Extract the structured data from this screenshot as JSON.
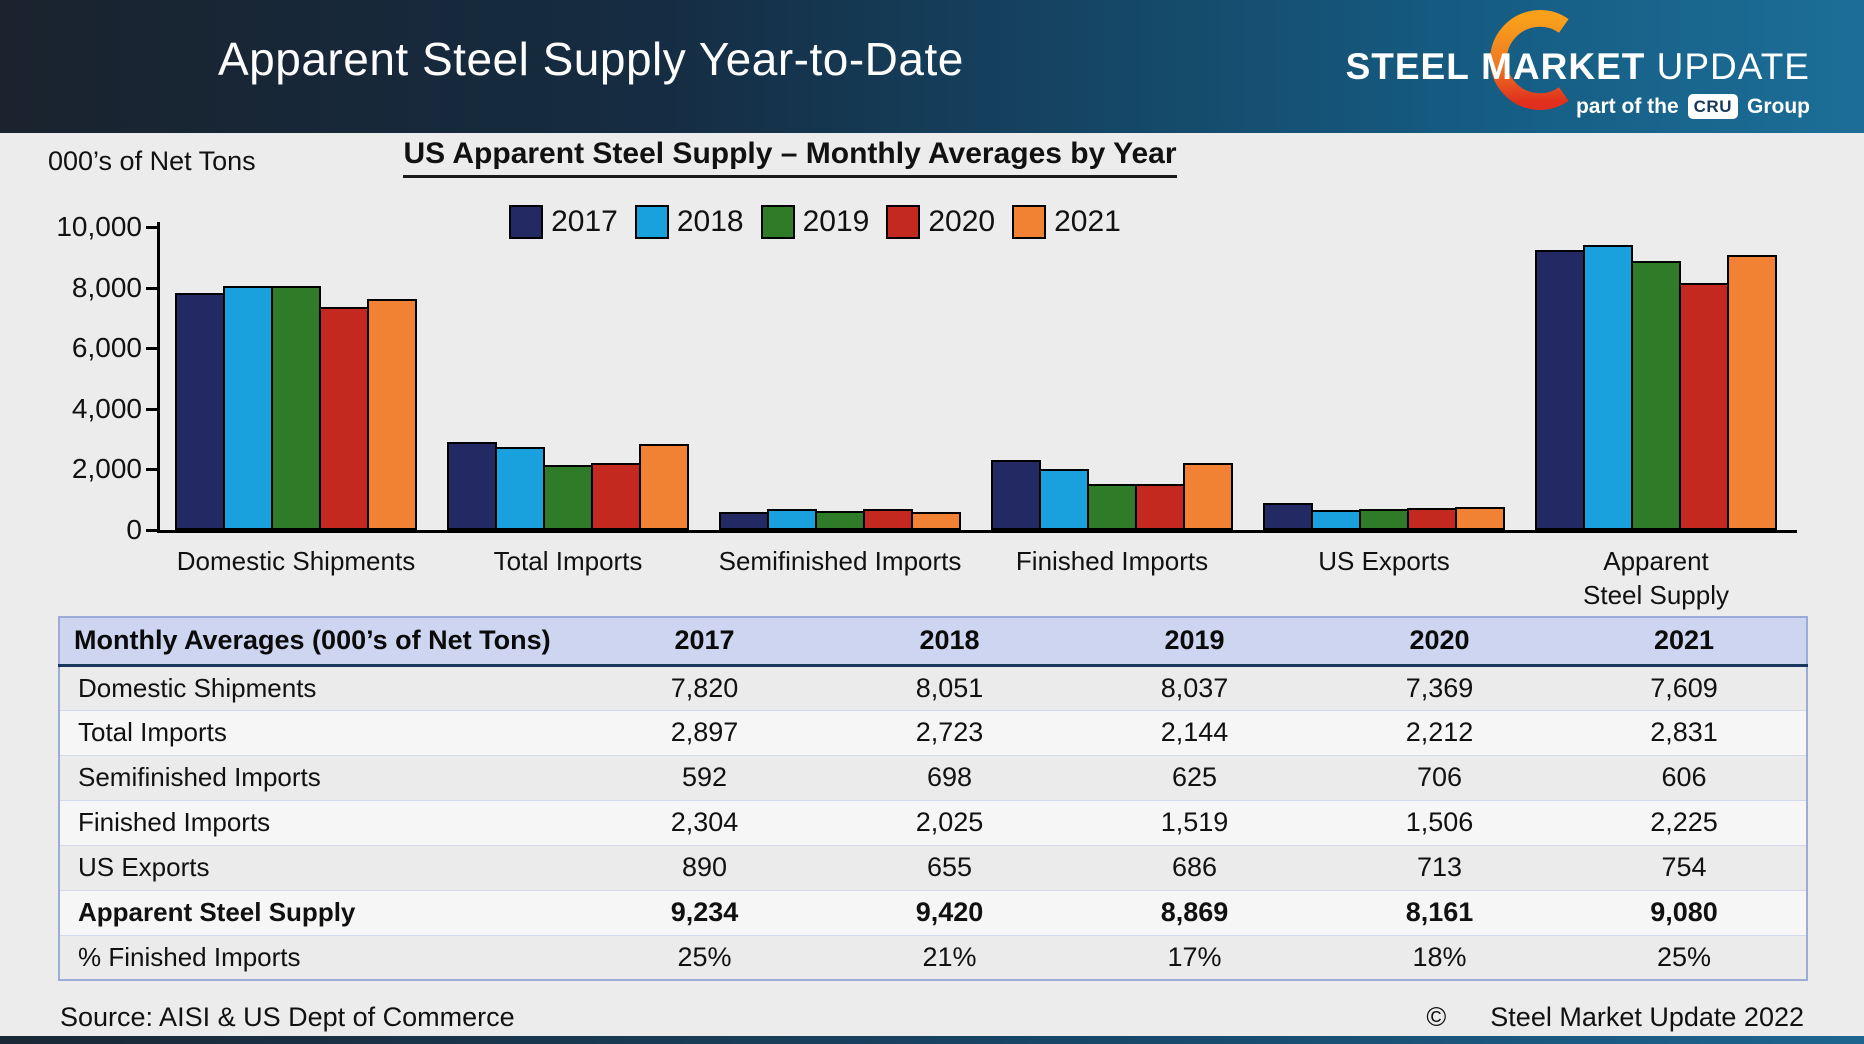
{
  "header": {
    "title": "Apparent Steel Supply Year-to-Date",
    "logo": {
      "steel": "STEEL",
      "market": "MARKET",
      "update": "UPDATE",
      "tagline_prefix": "part of the",
      "cru": "CRU",
      "tagline_suffix": "Group"
    }
  },
  "chart": {
    "units_label": "000’s of Net Tons",
    "y_tick_labels": [
      "0",
      "2,000",
      "4,000",
      "6,000",
      "8,000",
      "10,000"
    ]
  },
  "chart_data": {
    "type": "bar",
    "title": "US Apparent Steel Supply – Monthly Averages by Year",
    "ylabel": "000’s of Net Tons",
    "xlabel": "",
    "ylim": [
      0,
      10000
    ],
    "ytick_interval": 2000,
    "grid": false,
    "legend_position": "top",
    "bar_outline": "#000000",
    "categories": [
      "Domestic Shipments",
      "Total Imports",
      "Semifinished Imports",
      "Finished Imports",
      "US Exports",
      "Apparent Steel Supply"
    ],
    "category_display": [
      "Domestic Shipments",
      "Total Imports",
      "Semifinished Imports",
      "Finished Imports",
      "US Exports",
      "Apparent\nSteel Supply"
    ],
    "series": [
      {
        "name": "2017",
        "color": "#232A63",
        "values": [
          7820,
          2897,
          592,
          2304,
          890,
          9234
        ]
      },
      {
        "name": "2018",
        "color": "#18A1DC",
        "values": [
          8051,
          2723,
          698,
          2025,
          655,
          9420
        ]
      },
      {
        "name": "2019",
        "color": "#2E7B28",
        "values": [
          8037,
          2144,
          625,
          1519,
          686,
          8869
        ]
      },
      {
        "name": "2020",
        "color": "#C3291E",
        "values": [
          7369,
          2212,
          706,
          1506,
          713,
          8161
        ]
      },
      {
        "name": "2021",
        "color": "#F28233",
        "values": [
          7609,
          2831,
          606,
          2225,
          754,
          9080
        ]
      }
    ]
  },
  "table": {
    "header_label": "Monthly Averages (000’s of Net Tons)",
    "years": [
      "2017",
      "2018",
      "2019",
      "2020",
      "2021"
    ],
    "rows": [
      {
        "label": "Domestic Shipments",
        "values": [
          "7,820",
          "8,051",
          "8,037",
          "7,369",
          "7,609"
        ],
        "bold": false
      },
      {
        "label": "Total Imports",
        "values": [
          "2,897",
          "2,723",
          "2,144",
          "2,212",
          "2,831"
        ],
        "bold": false
      },
      {
        "label": "Semifinished Imports",
        "values": [
          "592",
          "698",
          "625",
          "706",
          "606"
        ],
        "bold": false
      },
      {
        "label": "Finished Imports",
        "values": [
          "2,304",
          "2,025",
          "1,519",
          "1,506",
          "2,225"
        ],
        "bold": false
      },
      {
        "label": "US Exports",
        "values": [
          "890",
          "655",
          "686",
          "713",
          "754"
        ],
        "bold": false
      },
      {
        "label": "Apparent Steel Supply",
        "values": [
          "9,234",
          "9,420",
          "8,869",
          "8,161",
          "9,080"
        ],
        "bold": true
      },
      {
        "label": "% Finished Imports",
        "values": [
          "25%",
          "21%",
          "17%",
          "18%",
          "25%"
        ],
        "bold": false
      }
    ]
  },
  "footer": {
    "source": "Source:  AISI & US Dept of Commerce",
    "copyright_symbol": "©",
    "copyright_text": "Steel Market Update 2022"
  },
  "colors": {
    "header_gradient_left": "#1A232E",
    "header_gradient_right": "#1C6E98",
    "background": "#ECECEC",
    "table_header_bg": "#CDD5F0",
    "table_header_rule": "#17375E",
    "table_border": "#9DACD6",
    "crescent_top": "#F9A01B",
    "crescent_bottom": "#E0301D"
  }
}
